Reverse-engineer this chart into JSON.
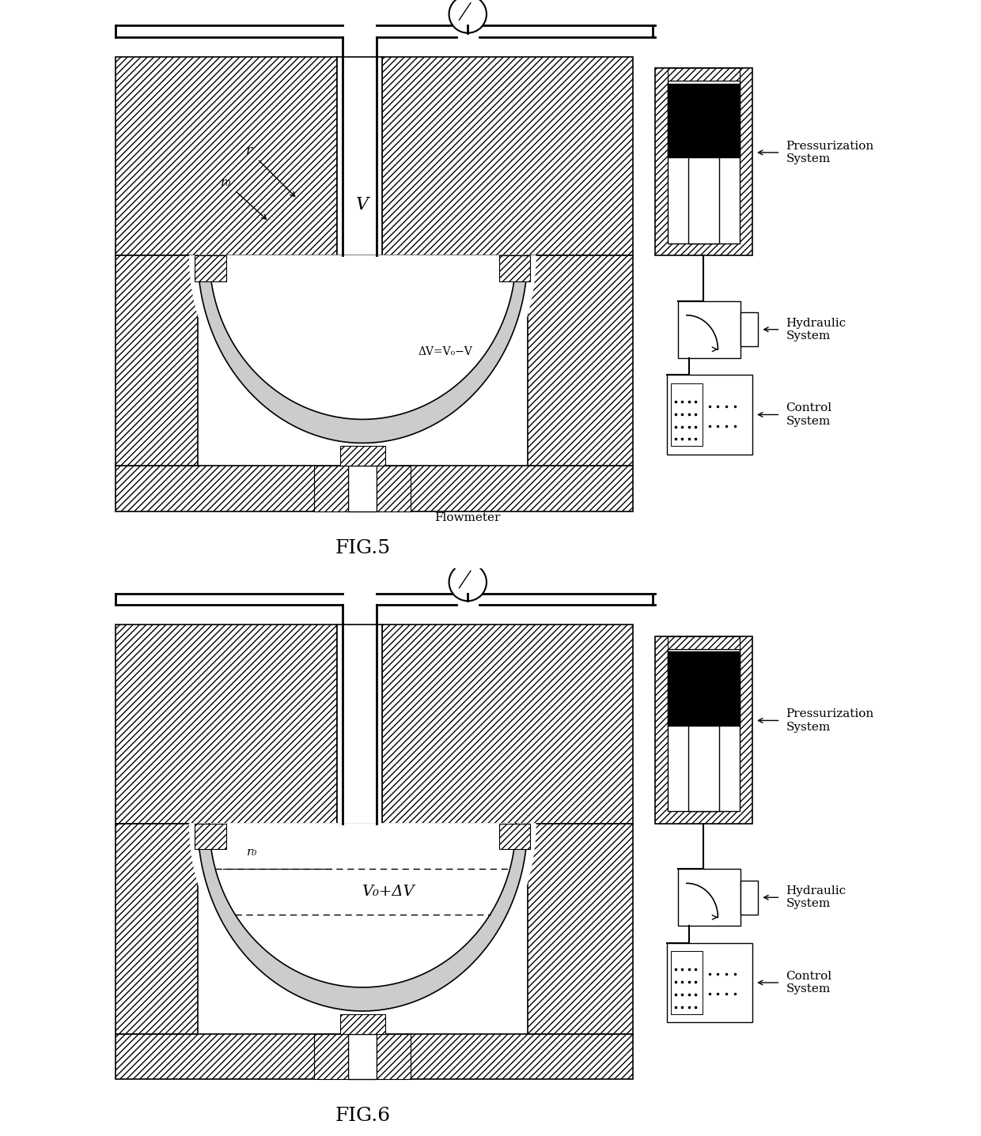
{
  "fig_width": 12.4,
  "fig_height": 14.37,
  "dpi": 100,
  "background": "#ffffff",
  "fig5_caption": "FIG.5",
  "fig6_caption": "FIG.6",
  "flowmeter_label": "Flowmeter",
  "press_label": "Pressurization\nSystem",
  "hydraulic_label": "Hydraulic\nSystem",
  "control_label": "Control\nSystem",
  "fig5_r": "r",
  "fig5_r0": "r₀",
  "fig5_V": "V",
  "fig5_dV": "ΔV=V₀−V",
  "fig6_r0": "r₀",
  "fig6_V": "V₀+ΔV"
}
